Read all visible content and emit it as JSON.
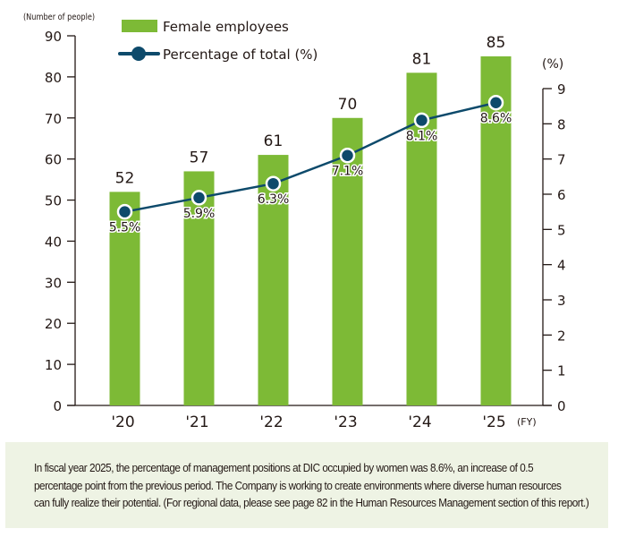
{
  "chart_data": {
    "type": "bar",
    "title": "",
    "categories": [
      "'20",
      "'21",
      "'22",
      "'23",
      "'24",
      "'25"
    ],
    "x_unit_label": "(FY)",
    "series": [
      {
        "name": "Female employees",
        "type": "bar",
        "axis": "left",
        "color": "#7dba36",
        "values": [
          52,
          57,
          61,
          70,
          81,
          85
        ]
      },
      {
        "name": "Percentage of total (%)",
        "type": "line",
        "axis": "right",
        "color": "#0d4a6b",
        "values": [
          5.5,
          5.9,
          6.3,
          7.1,
          8.1,
          8.6
        ],
        "labels": [
          "5.5%",
          "5.9%",
          "6.3%",
          "7.1%",
          "8.1%",
          "8.6%"
        ]
      }
    ],
    "left_axis": {
      "label": "(Number of people)",
      "ylim": [
        0,
        90
      ],
      "ticks": [
        0,
        10,
        20,
        30,
        40,
        50,
        60,
        70,
        80,
        90
      ]
    },
    "right_axis": {
      "label": "(%)",
      "ylim": [
        0,
        9
      ],
      "ticks": [
        0,
        1,
        2,
        3,
        4,
        5,
        6,
        7,
        8,
        9
      ]
    },
    "grid": false,
    "legend_position": "top-left"
  },
  "note": {
    "lines": [
      "In fiscal year 2025, the percentage of management positions at DIC occupied by women was 8.6%, an increase of 0.5",
      "percentage point from the previous period. The Company is working to create environments where diverse human resources",
      "can fully realize their potential. (For regional data, please see page 82 in the Human Resources Management section of this report.)"
    ]
  }
}
